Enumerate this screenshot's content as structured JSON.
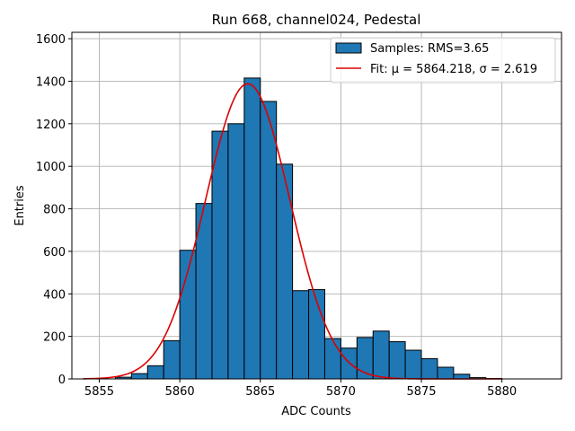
{
  "chart_data": {
    "type": "bar",
    "title": "Run 668, channel024, Pedestal",
    "xlabel": "ADC Counts",
    "ylabel": "Entries",
    "xlim": [
      5853.3,
      5883.7
    ],
    "ylim": [
      0,
      1630
    ],
    "xticks": [
      5855,
      5860,
      5865,
      5870,
      5875,
      5880
    ],
    "yticks": [
      0,
      200,
      400,
      600,
      800,
      1000,
      1200,
      1400,
      1600
    ],
    "grid": true,
    "legend_position": "top-right",
    "bin_width": 1,
    "histogram": {
      "name": "Samples: RMS=3.65",
      "color": "#1f77b4",
      "bins": [
        {
          "left": 5856,
          "value": 8
        },
        {
          "left": 5857,
          "value": 25
        },
        {
          "left": 5858,
          "value": 62
        },
        {
          "left": 5859,
          "value": 180
        },
        {
          "left": 5860,
          "value": 605
        },
        {
          "left": 5861,
          "value": 825
        },
        {
          "left": 5862,
          "value": 1165
        },
        {
          "left": 5863,
          "value": 1200
        },
        {
          "left": 5864,
          "value": 1415
        },
        {
          "left": 5865,
          "value": 1305
        },
        {
          "left": 5866,
          "value": 1010
        },
        {
          "left": 5867,
          "value": 415
        },
        {
          "left": 5868,
          "value": 420
        },
        {
          "left": 5869,
          "value": 190
        },
        {
          "left": 5870,
          "value": 145
        },
        {
          "left": 5871,
          "value": 195
        },
        {
          "left": 5872,
          "value": 225
        },
        {
          "left": 5873,
          "value": 175
        },
        {
          "left": 5874,
          "value": 135
        },
        {
          "left": 5875,
          "value": 95
        },
        {
          "left": 5876,
          "value": 55
        },
        {
          "left": 5877,
          "value": 22
        },
        {
          "left": 5878,
          "value": 6
        },
        {
          "left": 5879,
          "value": 2
        }
      ]
    },
    "fit": {
      "name": "Fit: μ = 5864.218, σ = 2.619",
      "color": "#dd0000",
      "type": "gaussian",
      "amplitude": 1388,
      "mu": 5864.218,
      "sigma": 2.619,
      "x_range": [
        5854,
        5880
      ]
    }
  }
}
